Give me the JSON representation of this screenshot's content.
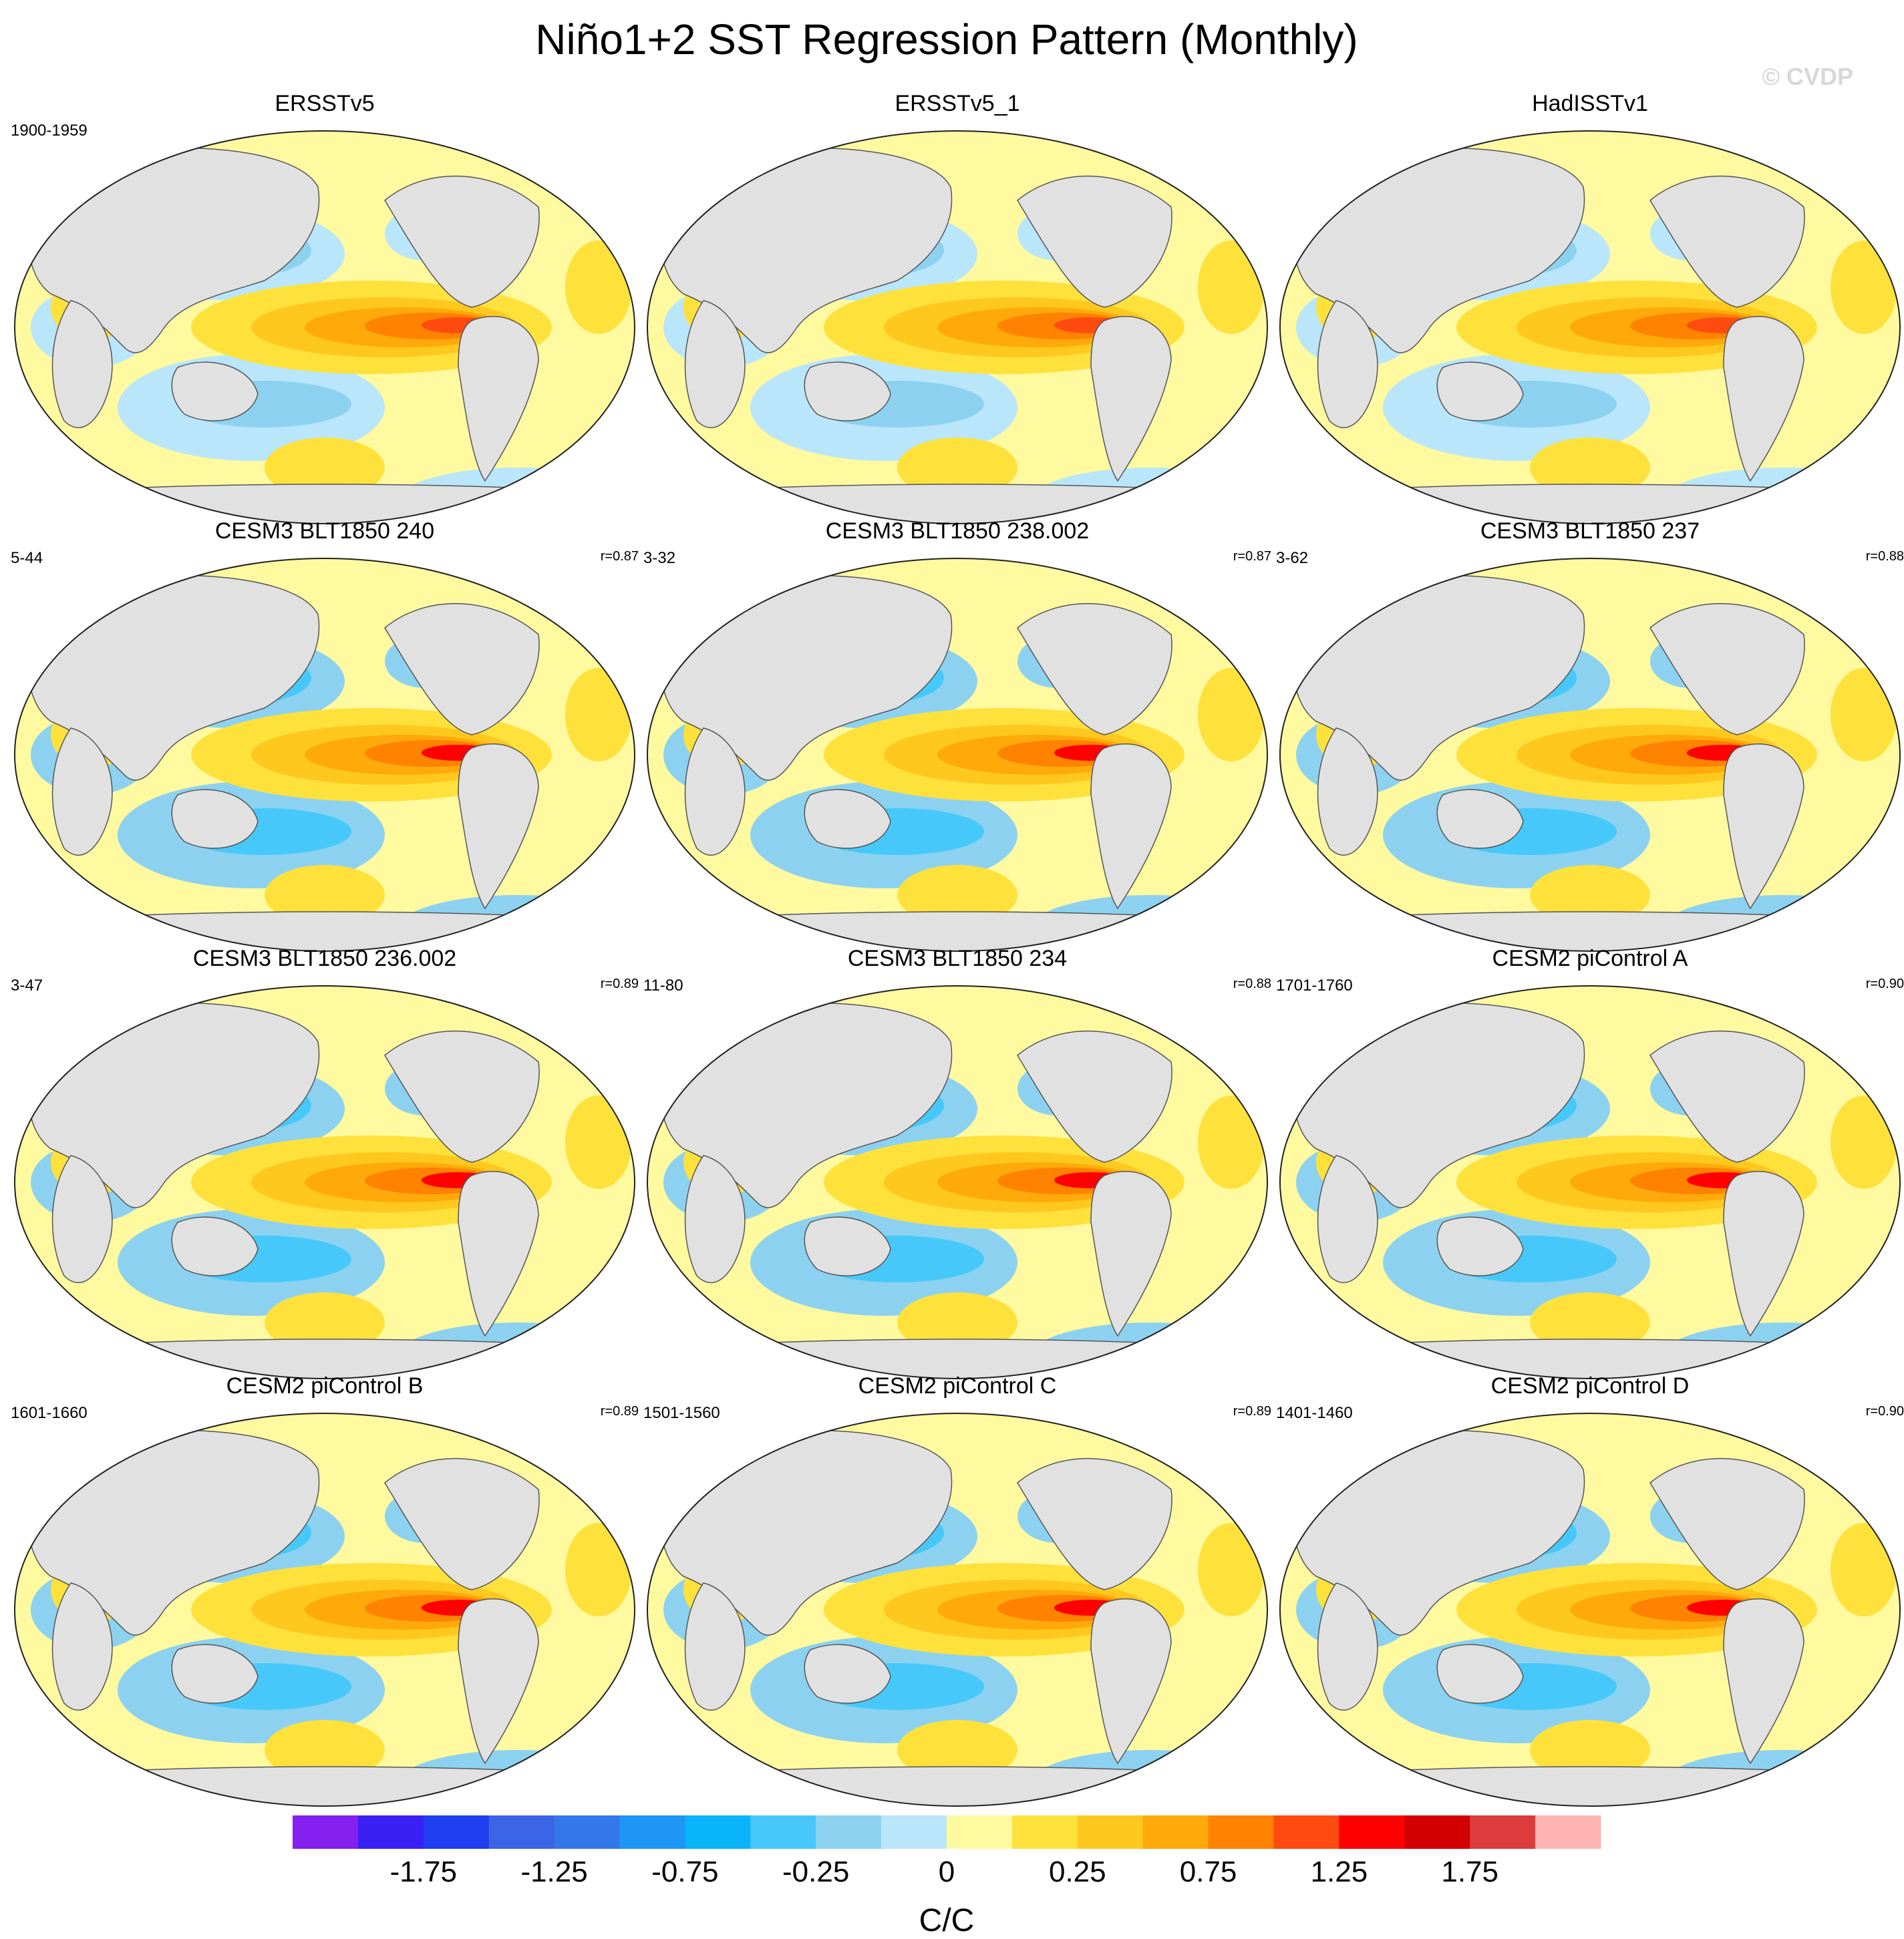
{
  "title": "Niño1+2 SST Regression Pattern (Monthly)",
  "watermark": "© CVDP",
  "panels": [
    {
      "name": "ERSSTv5",
      "period": "1900-1959",
      "r": ""
    },
    {
      "name": "ERSSTv5_1",
      "period": "",
      "r": ""
    },
    {
      "name": "HadISSTv1",
      "period": "",
      "r": ""
    },
    {
      "name": "CESM3 BLT1850 240",
      "period": "5-44",
      "r": "r=0.87"
    },
    {
      "name": "CESM3 BLT1850 238.002",
      "period": "3-32",
      "r": "r=0.87"
    },
    {
      "name": "CESM3 BLT1850 237",
      "period": "3-62",
      "r": "r=0.88"
    },
    {
      "name": "CESM3 BLT1850 236.002",
      "period": "3-47",
      "r": "r=0.89"
    },
    {
      "name": "CESM3 BLT1850 234",
      "period": "11-80",
      "r": "r=0.88"
    },
    {
      "name": "CESM2 piControl A",
      "period": "1701-1760",
      "r": "r=0.90"
    },
    {
      "name": "CESM2 piControl B",
      "period": "1601-1660",
      "r": "r=0.89"
    },
    {
      "name": "CESM2 piControl C",
      "period": "1501-1560",
      "r": "r=0.89"
    },
    {
      "name": "CESM2 piControl D",
      "period": "1401-1460",
      "r": "r=0.90"
    }
  ],
  "colorbar": {
    "colors": [
      "#8420f0",
      "#3a20f5",
      "#1f3ef0",
      "#3c64e6",
      "#3278eb",
      "#1e96f5",
      "#0ab4fa",
      "#46c8fa",
      "#8cd2f0",
      "#b9e6fa",
      "#fffaa0",
      "#ffe13c",
      "#ffc81e",
      "#ffaa0a",
      "#ff8200",
      "#ff4b0f",
      "#ff0000",
      "#d20000",
      "#dc3c3c",
      "#ffb4b4"
    ],
    "labels": [
      "-1.75",
      "-1.25",
      "-0.75",
      "-0.25",
      "0",
      "0.25",
      "0.75",
      "1.25",
      "1.75"
    ],
    "units": "C/C"
  }
}
